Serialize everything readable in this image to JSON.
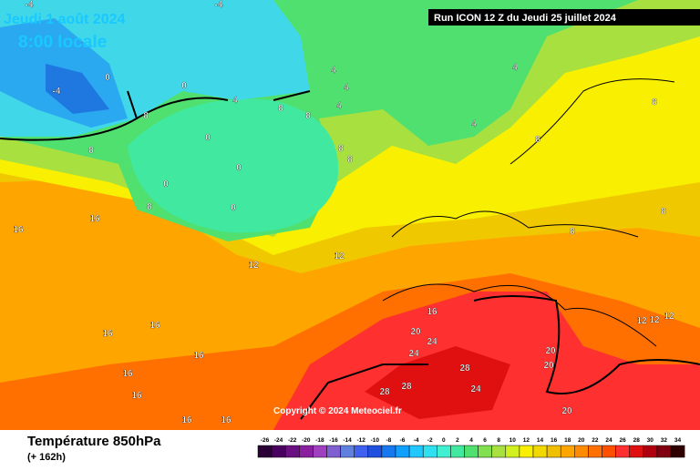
{
  "header": {
    "date": "Jeudi 1 août 2024",
    "time": "8:00 locale",
    "run": "Run ICON 12 Z du Jeudi 25 juillet 2024",
    "copyright": "Copyright © 2024 Meteociel.fr"
  },
  "footer": {
    "title": "Température 850hPa",
    "lead": "(+ 162h)"
  },
  "legend": {
    "labels": [
      -26,
      -24,
      -22,
      -20,
      -18,
      -16,
      -14,
      -12,
      -10,
      -8,
      -6,
      -4,
      -2,
      0,
      2,
      4,
      6,
      8,
      10,
      12,
      14,
      16,
      18,
      20,
      22,
      24,
      26,
      28,
      30,
      32,
      34
    ]
  },
  "contour_labels": [
    -4,
    -4,
    0,
    0,
    -4,
    4,
    4,
    4,
    4,
    4,
    8,
    8,
    8,
    0,
    0,
    0,
    0,
    4,
    8,
    8,
    8,
    8,
    8,
    16,
    16,
    12,
    12,
    16,
    16,
    16,
    16,
    16,
    16,
    20,
    24,
    24,
    28,
    28,
    28,
    24,
    20,
    20,
    20,
    12,
    12,
    12,
    16,
    16,
    8,
    8,
    8
  ]
}
